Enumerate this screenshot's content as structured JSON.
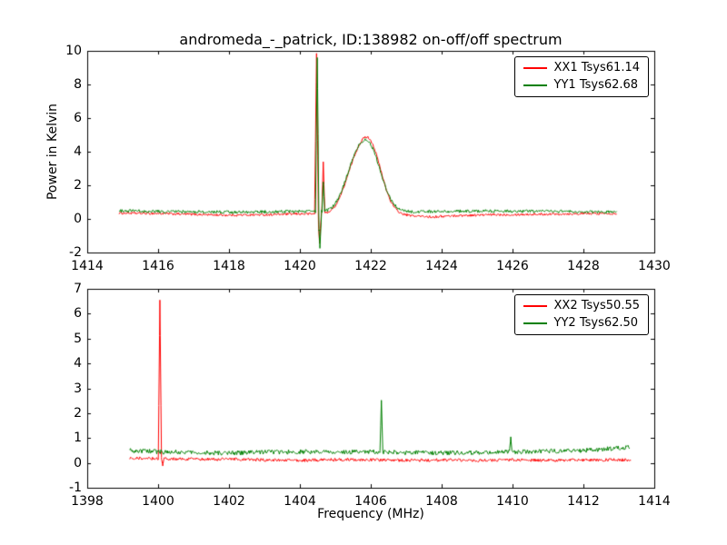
{
  "figure": {
    "title": "andromeda_-_patrick, ID:138982 on-off/off spectrum",
    "background": "#ffffff",
    "axis_color": "#000000"
  },
  "chart_data": [
    {
      "type": "line",
      "title": "",
      "xlabel": "",
      "ylabel": "Power in Kelvin",
      "xlim": [
        1414,
        1430
      ],
      "ylim": [
        -2,
        10
      ],
      "xticks": [
        1414,
        1416,
        1418,
        1420,
        1422,
        1424,
        1426,
        1428,
        1430
      ],
      "yticks": [
        -2,
        0,
        2,
        4,
        6,
        8,
        10
      ],
      "grid": false,
      "legend_position": "upper right",
      "series": [
        {
          "name": "XX1",
          "label": "XX1 Tsys61.14",
          "color": "#ff0000",
          "x_start": 1414.9,
          "x_end": 1428.95,
          "noise": 0.07,
          "baseline": [
            [
              1414.9,
              0.35
            ],
            [
              1416,
              0.32
            ],
            [
              1417,
              0.27
            ],
            [
              1418,
              0.22
            ],
            [
              1419,
              0.25
            ],
            [
              1420,
              0.3
            ],
            [
              1421,
              0.3
            ],
            [
              1422,
              0.3
            ],
            [
              1423,
              0.2
            ],
            [
              1423.7,
              0.12
            ],
            [
              1424.5,
              0.2
            ],
            [
              1425.5,
              0.25
            ],
            [
              1426.5,
              0.27
            ],
            [
              1427.5,
              0.3
            ],
            [
              1428.95,
              0.33
            ]
          ],
          "gaussians": [
            {
              "center": 1421.95,
              "amplitude": 4.2,
              "sigma": 0.34
            },
            {
              "center": 1421.45,
              "amplitude": 1.5,
              "sigma": 0.28
            }
          ],
          "spikes": [
            {
              "x": 1420.47,
              "y": 9.85,
              "w": 0.055
            },
            {
              "x": 1420.555,
              "y": -1.45,
              "w": 0.05
            },
            {
              "x": 1420.66,
              "y": 3.4,
              "w": 0.045
            }
          ]
        },
        {
          "name": "YY1",
          "label": "YY1 Tsys62.68",
          "color": "#008000",
          "x_start": 1414.9,
          "x_end": 1428.95,
          "noise": 0.09,
          "baseline": [
            [
              1414.9,
              0.48
            ],
            [
              1416,
              0.45
            ],
            [
              1417,
              0.42
            ],
            [
              1418,
              0.4
            ],
            [
              1419,
              0.42
            ],
            [
              1420,
              0.45
            ],
            [
              1421,
              0.42
            ],
            [
              1422,
              0.4
            ],
            [
              1423,
              0.42
            ],
            [
              1424,
              0.45
            ],
            [
              1425,
              0.47
            ],
            [
              1426,
              0.45
            ],
            [
              1427,
              0.45
            ],
            [
              1428,
              0.42
            ],
            [
              1428.95,
              0.4
            ]
          ],
          "gaussians": [
            {
              "center": 1421.93,
              "amplitude": 3.9,
              "sigma": 0.35
            },
            {
              "center": 1421.45,
              "amplitude": 1.4,
              "sigma": 0.28
            }
          ],
          "spikes": [
            {
              "x": 1420.49,
              "y": 9.6,
              "w": 0.05
            },
            {
              "x": 1420.565,
              "y": -1.75,
              "w": 0.05
            },
            {
              "x": 1420.66,
              "y": 2.2,
              "w": 0.04
            }
          ]
        }
      ]
    },
    {
      "type": "line",
      "title": "",
      "xlabel": "Frequency (MHz)",
      "ylabel": "",
      "xlim": [
        1398,
        1414
      ],
      "ylim": [
        -1,
        7
      ],
      "xticks": [
        1398,
        1400,
        1402,
        1404,
        1406,
        1408,
        1410,
        1412,
        1414
      ],
      "yticks": [
        -1,
        0,
        1,
        2,
        3,
        4,
        5,
        6,
        7
      ],
      "grid": false,
      "legend_position": "upper right",
      "series": [
        {
          "name": "XX2",
          "label": "XX2 Tsys50.55",
          "color": "#ff0000",
          "x_start": 1399.2,
          "x_end": 1413.35,
          "noise": 0.06,
          "baseline": [
            [
              1399.2,
              0.2
            ],
            [
              1400,
              0.17
            ],
            [
              1401,
              0.15
            ],
            [
              1402,
              0.15
            ],
            [
              1403,
              0.12
            ],
            [
              1404,
              0.1
            ],
            [
              1405,
              0.13
            ],
            [
              1406,
              0.13
            ],
            [
              1407,
              0.1
            ],
            [
              1408,
              0.12
            ],
            [
              1409,
              0.1
            ],
            [
              1410,
              0.12
            ],
            [
              1411,
              0.1
            ],
            [
              1412,
              0.12
            ],
            [
              1413.35,
              0.12
            ]
          ],
          "gaussians": [],
          "spikes": [
            {
              "x": 1400.05,
              "y": 6.55,
              "w": 0.045
            },
            {
              "x": 1400.13,
              "y": -0.12,
              "w": 0.035
            }
          ]
        },
        {
          "name": "YY2",
          "label": "YY2 Tsys62.50",
          "color": "#008000",
          "x_start": 1399.2,
          "x_end": 1413.3,
          "noise": 0.09,
          "baseline": [
            [
              1399.2,
              0.5
            ],
            [
              1400,
              0.45
            ],
            [
              1401,
              0.42
            ],
            [
              1402,
              0.4
            ],
            [
              1403,
              0.43
            ],
            [
              1404,
              0.45
            ],
            [
              1405,
              0.44
            ],
            [
              1406,
              0.45
            ],
            [
              1407,
              0.42
            ],
            [
              1408,
              0.4
            ],
            [
              1409,
              0.42
            ],
            [
              1410,
              0.44
            ],
            [
              1411,
              0.47
            ],
            [
              1412,
              0.5
            ],
            [
              1412.8,
              0.58
            ],
            [
              1413.3,
              0.62
            ]
          ],
          "gaussians": [],
          "spikes": [
            {
              "x": 1406.3,
              "y": 2.52,
              "w": 0.04
            },
            {
              "x": 1409.95,
              "y": 1.05,
              "w": 0.035
            }
          ]
        }
      ]
    }
  ]
}
